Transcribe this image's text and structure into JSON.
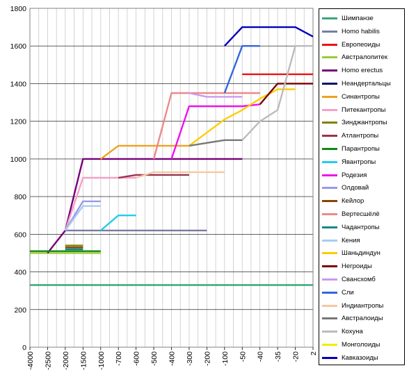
{
  "chart_data": {
    "type": "line",
    "categories": [
      "-4000",
      "-2500",
      "-2000",
      "-1500",
      "-1000",
      "-700",
      "-600",
      "-500",
      "-400",
      "-300",
      "-200",
      "-100",
      "-50",
      "-40",
      "-35",
      "-20",
      "2"
    ],
    "ylim": [
      0,
      1800
    ],
    "yticks": [
      0,
      200,
      400,
      600,
      800,
      1000,
      1200,
      1400,
      1600,
      1800
    ],
    "grid": true,
    "legend_position": "right",
    "series": [
      {
        "name": "Шимпанзе",
        "color": "#3aa77a",
        "values": [
          330,
          330,
          330,
          330,
          330,
          330,
          330,
          330,
          330,
          330,
          330,
          330,
          330,
          330,
          330,
          330,
          330
        ]
      },
      {
        "name": "Homo habilis",
        "color": "#7a7aa8",
        "values": [
          null,
          null,
          620,
          620,
          620,
          620,
          620,
          620,
          620,
          620,
          620,
          null,
          null,
          null,
          null,
          null,
          null
        ]
      },
      {
        "name": "Европеоиды",
        "color": "#ee1111",
        "values": [
          null,
          null,
          null,
          null,
          null,
          null,
          null,
          null,
          null,
          null,
          null,
          null,
          1450,
          1450,
          1450,
          1450,
          1450
        ]
      },
      {
        "name": "Австралопитек",
        "color": "#99cc33",
        "values": [
          500,
          500,
          500,
          500,
          500,
          null,
          null,
          null,
          null,
          null,
          null,
          null,
          null,
          null,
          null,
          null,
          null
        ]
      },
      {
        "name": "Homo erectus",
        "color": "#770077",
        "values": [
          null,
          500,
          620,
          1000,
          1000,
          1000,
          1000,
          1000,
          1000,
          1000,
          1000,
          1000,
          1000,
          null,
          null,
          null,
          null
        ]
      },
      {
        "name": "Неандертальцы",
        "color": "#001166",
        "values": [
          null,
          null,
          null,
          null,
          null,
          null,
          null,
          null,
          null,
          null,
          null,
          null,
          null,
          null,
          null,
          null,
          null
        ]
      },
      {
        "name": "Синантропы",
        "color": "#f0a020",
        "values": [
          null,
          null,
          null,
          null,
          1000,
          1070,
          1070,
          1070,
          1070,
          1070,
          null,
          null,
          null,
          null,
          null,
          null,
          null
        ]
      },
      {
        "name": "Питекантропы",
        "color": "#f5a0c8",
        "values": [
          null,
          null,
          620,
          900,
          900,
          900,
          900,
          null,
          null,
          null,
          null,
          null,
          null,
          null,
          null,
          null,
          null
        ]
      },
      {
        "name": "Зинджантропы",
        "color": "#808000",
        "values": [
          null,
          null,
          540,
          540,
          null,
          null,
          null,
          null,
          null,
          null,
          null,
          null,
          null,
          null,
          null,
          null,
          null
        ]
      },
      {
        "name": "Атлантропы",
        "color": "#99334d",
        "values": [
          null,
          null,
          null,
          null,
          null,
          900,
          915,
          915,
          915,
          915,
          null,
          null,
          null,
          null,
          null,
          null,
          null
        ]
      },
      {
        "name": "Парантропы",
        "color": "#118811",
        "values": [
          510,
          510,
          510,
          510,
          510,
          null,
          null,
          null,
          null,
          null,
          null,
          null,
          null,
          null,
          null,
          null,
          null
        ]
      },
      {
        "name": "Явантропы",
        "color": "#22ccee",
        "values": [
          null,
          null,
          null,
          null,
          620,
          700,
          700,
          null,
          null,
          null,
          null,
          null,
          null,
          null,
          null,
          null,
          null
        ]
      },
      {
        "name": "Родезия",
        "color": "#ee11ee",
        "values": [
          null,
          null,
          null,
          null,
          null,
          null,
          null,
          null,
          1000,
          1280,
          1280,
          1280,
          1280,
          1290,
          null,
          null,
          null
        ]
      },
      {
        "name": "Олдовай",
        "color": "#9999ee",
        "values": [
          null,
          null,
          620,
          775,
          775,
          null,
          null,
          null,
          null,
          null,
          null,
          null,
          null,
          null,
          null,
          null,
          null
        ]
      },
      {
        "name": "Кейлор",
        "color": "#884400",
        "values": [
          null,
          null,
          530,
          530,
          null,
          null,
          null,
          null,
          null,
          null,
          null,
          null,
          null,
          null,
          null,
          null,
          null
        ]
      },
      {
        "name": "Вертесшёлё",
        "color": "#ee8888",
        "values": [
          null,
          null,
          null,
          null,
          null,
          null,
          null,
          1000,
          1350,
          1350,
          1350,
          1350,
          1350,
          1350,
          null,
          null,
          null
        ]
      },
      {
        "name": "Чадантропы",
        "color": "#118888",
        "values": [
          null,
          null,
          520,
          520,
          null,
          null,
          null,
          null,
          null,
          null,
          null,
          null,
          null,
          null,
          null,
          null,
          null
        ]
      },
      {
        "name": "Кения",
        "color": "#aaccee",
        "values": [
          null,
          null,
          620,
          750,
          750,
          null,
          null,
          null,
          null,
          null,
          null,
          null,
          null,
          null,
          null,
          null,
          null
        ]
      },
      {
        "name": "Шаньдиндун",
        "color": "#ffcc00",
        "values": [
          null,
          null,
          null,
          null,
          null,
          null,
          null,
          null,
          null,
          1070,
          1140,
          1210,
          1260,
          1320,
          1370,
          1370,
          null
        ]
      },
      {
        "name": "Негроиды",
        "color": "#770000",
        "values": [
          null,
          null,
          null,
          null,
          null,
          null,
          null,
          null,
          null,
          null,
          null,
          null,
          null,
          1290,
          1400,
          1400,
          1400
        ]
      },
      {
        "name": "Свансхомб",
        "color": "#cc99ee",
        "values": [
          null,
          null,
          null,
          null,
          null,
          null,
          null,
          null,
          null,
          1350,
          1330,
          1330,
          1330,
          null,
          null,
          null,
          null
        ]
      },
      {
        "name": "Сли",
        "color": "#3366dd",
        "values": [
          null,
          null,
          null,
          null,
          null,
          null,
          null,
          null,
          null,
          null,
          null,
          1350,
          1600,
          1600,
          null,
          null,
          null
        ]
      },
      {
        "name": "Индиантропы",
        "color": "#f5c8a0",
        "values": [
          null,
          null,
          null,
          null,
          null,
          null,
          900,
          930,
          930,
          930,
          930,
          930,
          null,
          null,
          null,
          null,
          null
        ]
      },
      {
        "name": "Австралоиды",
        "color": "#777777",
        "values": [
          null,
          null,
          null,
          null,
          null,
          null,
          null,
          null,
          null,
          1070,
          1085,
          1100,
          1100,
          null,
          null,
          null,
          null
        ]
      },
      {
        "name": "Кохуна",
        "color": "#bbbbbb",
        "values": [
          null,
          null,
          null,
          null,
          null,
          null,
          null,
          null,
          null,
          null,
          null,
          null,
          1100,
          1200,
          1260,
          1600,
          1600
        ]
      },
      {
        "name": "Монголоиды",
        "color": "#eeee00",
        "values": [
          null,
          null,
          null,
          null,
          null,
          null,
          null,
          null,
          null,
          null,
          null,
          null,
          null,
          null,
          null,
          null,
          null
        ]
      },
      {
        "name": "Кавказоиды",
        "color": "#0000bb",
        "values": [
          null,
          null,
          null,
          null,
          null,
          null,
          null,
          null,
          null,
          null,
          null,
          1600,
          1700,
          1700,
          1700,
          1700,
          1650
        ]
      }
    ]
  }
}
